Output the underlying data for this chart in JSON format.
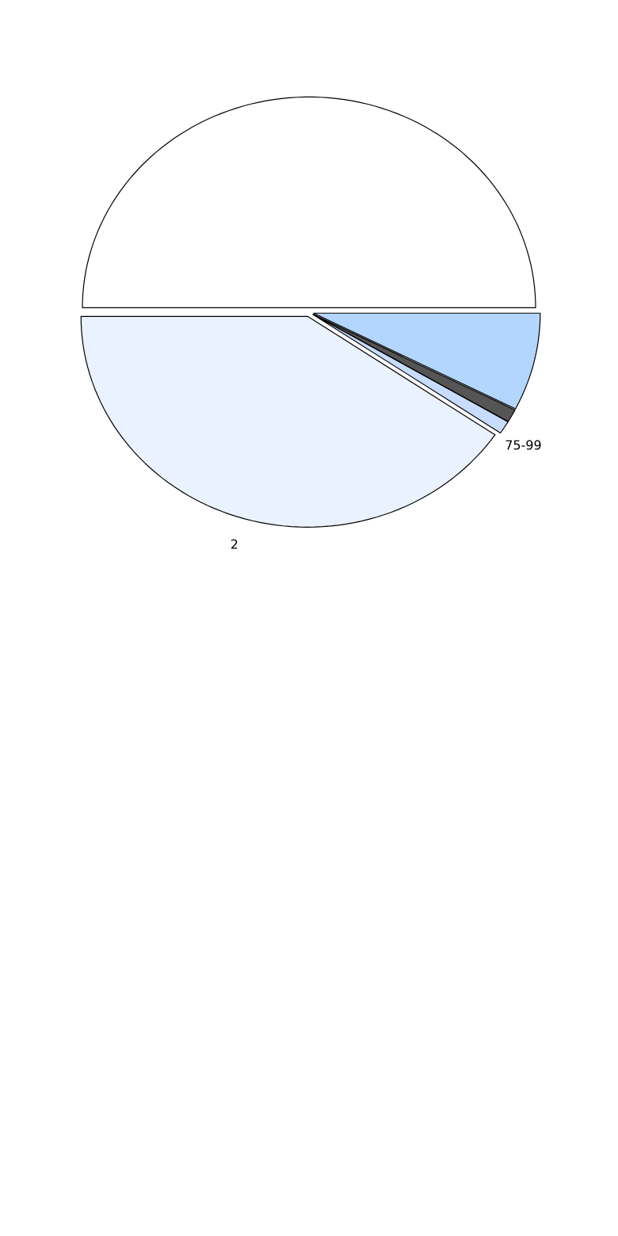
{
  "chart_data": {
    "type": "pie",
    "categories": [
      null,
      null,
      "75-99",
      "2",
      null
    ],
    "values": [
      7.5,
      1,
      1,
      40.5,
      50
    ],
    "colors": [
      "#b3d6ff",
      "#555555",
      "#c8dcff",
      "#eaf2ff",
      "#ffffff"
    ]
  }
}
